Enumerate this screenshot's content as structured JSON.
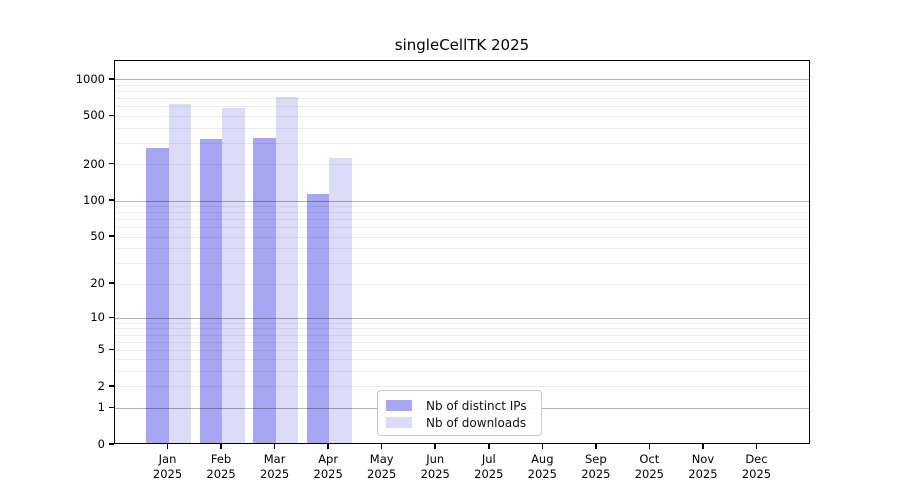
{
  "title": "singleCellTK 2025",
  "chart_data": {
    "type": "bar",
    "title": "singleCellTK 2025",
    "categories": [
      "Jan",
      "Feb",
      "Mar",
      "Apr",
      "May",
      "Jun",
      "Jul",
      "Aug",
      "Sep",
      "Oct",
      "Nov",
      "Dec"
    ],
    "year": "2025",
    "series": [
      {
        "name": "Nb of distinct IPs",
        "color": "#a6a6f2",
        "values": [
          265,
          315,
          320,
          110,
          null,
          null,
          null,
          null,
          null,
          null,
          null,
          null
        ]
      },
      {
        "name": "Nb of downloads",
        "color": "#dcdcf9",
        "values": [
          615,
          565,
          695,
          220,
          null,
          null,
          null,
          null,
          null,
          null,
          null,
          null
        ]
      }
    ],
    "y_ticks": [
      0,
      1,
      2,
      5,
      10,
      20,
      50,
      100,
      200,
      500,
      1000
    ],
    "y_scale": "log10(1+x)",
    "ylim": [
      0,
      1430
    ],
    "xlabel": "",
    "ylabel": "",
    "grid": "horizontal",
    "legend_position": "bottom-center"
  },
  "legend": {
    "items": [
      {
        "label": "Nb of distinct IPs",
        "color": "#a6a6f2"
      },
      {
        "label": "Nb of downloads",
        "color": "#dcdcf9"
      }
    ]
  }
}
